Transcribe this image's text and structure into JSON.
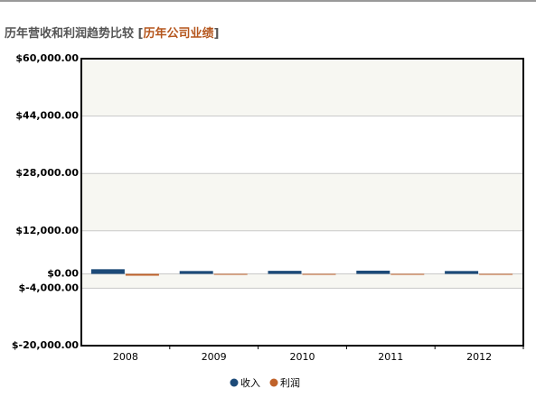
{
  "chart_data": {
    "type": "bar",
    "title_parts": [
      "历年营收和利润趋势比较 [",
      "历年公司业绩",
      "]"
    ],
    "categories": [
      "2008",
      "2009",
      "2010",
      "2011",
      "2012"
    ],
    "series": [
      {
        "name": "收入",
        "color": "#1c4a78",
        "values": [
          1300,
          800,
          850,
          900,
          800
        ]
      },
      {
        "name": "利润",
        "color": "#c0622a",
        "values": [
          -500,
          -100,
          -150,
          -100,
          -100
        ]
      }
    ],
    "ylim": [
      -20000,
      60000
    ],
    "yticks": [
      {
        "value": -20000,
        "label": "$-20,000.00"
      },
      {
        "value": -4000,
        "label": "$-4,000.00"
      },
      {
        "value": 0,
        "label": "$0.00"
      },
      {
        "value": 12000,
        "label": "$12,000.00"
      },
      {
        "value": 28000,
        "label": "$28,000.00"
      },
      {
        "value": 44000,
        "label": "$44,000.00"
      },
      {
        "value": 60000,
        "label": "$60,000.00"
      }
    ],
    "grid": true
  }
}
